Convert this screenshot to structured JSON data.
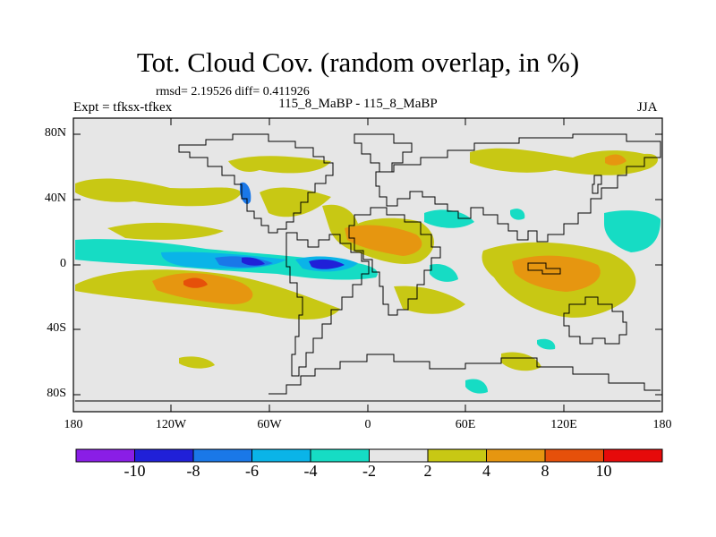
{
  "title": "Tot. Cloud Cov. (random overlap, in %)",
  "stats": "rmsd= 2.19526 diff= 0.411926",
  "expt": "Expt = tfksx-tfkex",
  "cases": "115_8_MaBP - 115_8_MaBP",
  "season": "JJA",
  "lat_labels": [
    "80N",
    "40N",
    "0",
    "40S",
    "80S"
  ],
  "lon_labels": [
    "180",
    "120W",
    "60W",
    "0",
    "60E",
    "120E",
    "180"
  ],
  "colorbar": {
    "labels": [
      "-10",
      "-8",
      "-6",
      "-4",
      "-2",
      "2",
      "4",
      "8",
      "10"
    ],
    "colors": [
      "#8a1ee6",
      "#2020d8",
      "#1a78e8",
      "#0ab4e8",
      "#16dcc4",
      "#e6e6e6",
      "#c8c814",
      "#e69610",
      "#e6500a",
      "#e60a0a"
    ]
  },
  "map": {
    "lon_range": [
      -180,
      180
    ],
    "lat_range": [
      -90,
      90
    ],
    "background_color": "#e6e6e6"
  }
}
